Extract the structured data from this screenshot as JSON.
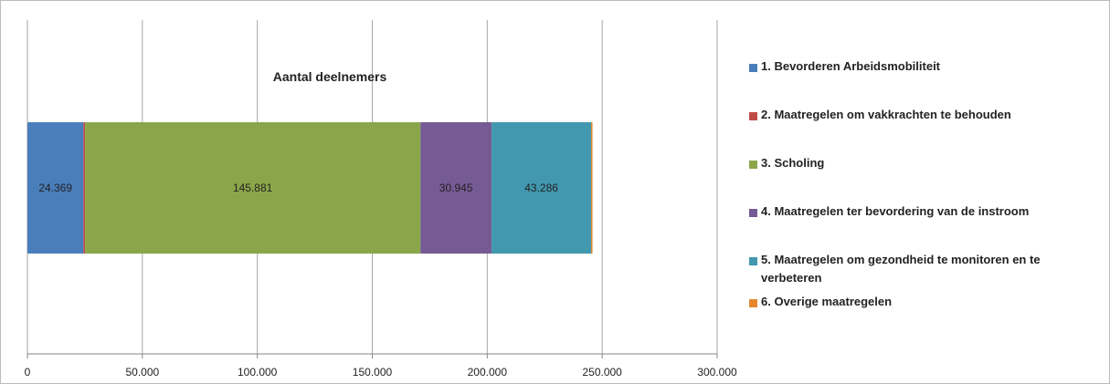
{
  "chart_data": {
    "type": "bar",
    "orientation": "horizontal",
    "stacked": true,
    "title": "Aantal deelnemers",
    "categories": [
      ""
    ],
    "xlim": [
      0,
      300000
    ],
    "x_ticks": [
      0,
      50000,
      100000,
      150000,
      200000,
      250000,
      300000
    ],
    "x_tick_labels": [
      "0",
      "50.000",
      "100.000",
      "150.000",
      "200.000",
      "250.000",
      "300.000"
    ],
    "grid": true,
    "legend_position": "right",
    "series": [
      {
        "name": "1. Bevorderen Arbeidsmobiliteit",
        "values": [
          24369
        ],
        "label": "24.369",
        "color": "#4a7ebb"
      },
      {
        "name": "2. Maatregelen om vakkrachten te behouden",
        "values": [
          700
        ],
        "label": "",
        "color": "#be4b48"
      },
      {
        "name": "3. Scholing",
        "values": [
          145881
        ],
        "label": "145.881",
        "color": "#8ba64a"
      },
      {
        "name": "4. Maatregelen ter bevordering van de instroom",
        "values": [
          30945
        ],
        "label": "30.945",
        "color": "#765a94"
      },
      {
        "name": "5. Maatregelen om gezondheid te monitoren en te verbeteren",
        "values": [
          43286
        ],
        "label": "43.286",
        "color": "#4198af"
      },
      {
        "name": "6. Overige maatregelen",
        "values": [
          400
        ],
        "label": "",
        "color": "#e4882b"
      }
    ]
  }
}
